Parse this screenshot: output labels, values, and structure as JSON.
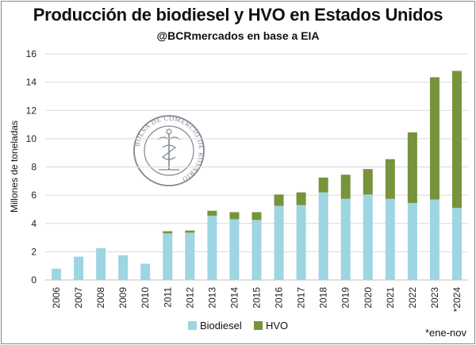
{
  "chart_data": {
    "type": "bar",
    "stacked": true,
    "title": "Producción de biodiesel y HVO en Estados Unidos",
    "subtitle": "@BCRmercados en base a EIA",
    "ylabel": "Millones de toneladas",
    "xlabel": "",
    "ylim": [
      0,
      16
    ],
    "yticks": [
      0,
      2,
      4,
      6,
      8,
      10,
      12,
      14,
      16
    ],
    "grid": true,
    "legend_position": "bottom",
    "categories": [
      "2006",
      "2007",
      "2008",
      "2009",
      "2010",
      "2011",
      "2012",
      "2013",
      "2014",
      "2015",
      "2016",
      "2017",
      "2018",
      "2019",
      "2020",
      "2021",
      "2022",
      "2023",
      "*2024"
    ],
    "series": [
      {
        "name": "Biodiesel",
        "color": "#9dd5e2",
        "values": [
          0.8,
          1.65,
          2.25,
          1.75,
          1.15,
          3.3,
          3.35,
          4.55,
          4.3,
          4.25,
          5.25,
          5.3,
          6.2,
          5.75,
          6.05,
          5.75,
          5.45,
          5.7,
          5.1
        ]
      },
      {
        "name": "HVO",
        "color": "#77933c",
        "values": [
          0,
          0,
          0,
          0,
          0,
          0.15,
          0.15,
          0.35,
          0.5,
          0.55,
          0.8,
          0.9,
          1.05,
          1.7,
          1.8,
          2.8,
          5.0,
          8.65,
          9.7
        ]
      }
    ],
    "footnote": "*ene-nov"
  },
  "watermark": {
    "text": "BOLSA DE COMERCIO DE ROSARIO",
    "color": "#7f8791"
  }
}
